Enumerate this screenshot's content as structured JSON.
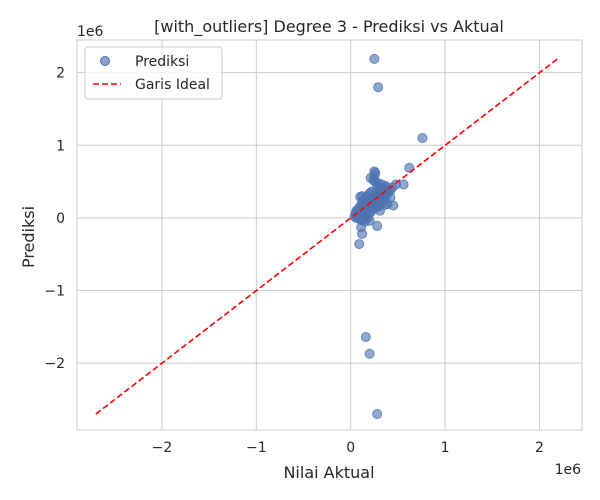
{
  "chart_data": {
    "type": "scatter",
    "title": "[with_outliers] Degree 3 - Prediksi vs Aktual",
    "xlabel": "Nilai Aktual",
    "ylabel": "Prediksi",
    "x_offset_text": "1e6",
    "y_offset_text": "1e6",
    "xlim": [
      -2.9,
      2.45
    ],
    "ylim": [
      -2.92,
      2.45
    ],
    "x_ticks": [
      -2,
      -1,
      0,
      1,
      2
    ],
    "y_ticks": [
      -2,
      -1,
      0,
      1,
      2
    ],
    "x_tick_labels": [
      "−2",
      "−1",
      "0",
      "1",
      "2"
    ],
    "y_tick_labels": [
      "−2",
      "−1",
      "0",
      "1",
      "2"
    ],
    "grid": true,
    "legend_position": "top-left",
    "colors": {
      "points": "#4c72b0",
      "ideal": "#ff0000",
      "grid": "#cccccc",
      "spine": "#cccccc"
    },
    "series": [
      {
        "name": "Prediksi",
        "type": "scatter",
        "points": [
          [
            0.25,
            2.19
          ],
          [
            0.29,
            1.8
          ],
          [
            0.76,
            1.1
          ],
          [
            0.62,
            0.69
          ],
          [
            0.56,
            0.46
          ],
          [
            0.48,
            0.46
          ],
          [
            0.44,
            0.42
          ],
          [
            0.42,
            0.38
          ],
          [
            0.38,
            0.42
          ],
          [
            0.36,
            0.36
          ],
          [
            0.33,
            0.46
          ],
          [
            0.31,
            0.4
          ],
          [
            0.28,
            0.44
          ],
          [
            0.26,
            0.62
          ],
          [
            0.25,
            0.64
          ],
          [
            0.25,
            0.58
          ],
          [
            0.24,
            0.52
          ],
          [
            0.21,
            0.55
          ],
          [
            0.26,
            0.5
          ],
          [
            0.22,
            0.36
          ],
          [
            0.2,
            0.34
          ],
          [
            0.18,
            0.3
          ],
          [
            0.16,
            0.28
          ],
          [
            0.12,
            0.3
          ],
          [
            0.1,
            0.29
          ],
          [
            0.3,
            0.3
          ],
          [
            0.32,
            0.26
          ],
          [
            0.34,
            0.22
          ],
          [
            0.36,
            0.18
          ],
          [
            0.39,
            0.19
          ],
          [
            0.45,
            0.17
          ],
          [
            0.3,
            0.16
          ],
          [
            0.31,
            0.1
          ],
          [
            0.28,
            0.18
          ],
          [
            0.26,
            0.22
          ],
          [
            0.24,
            0.26
          ],
          [
            0.22,
            0.24
          ],
          [
            0.2,
            0.2
          ],
          [
            0.18,
            0.16
          ],
          [
            0.16,
            0.14
          ],
          [
            0.14,
            0.18
          ],
          [
            0.12,
            0.22
          ],
          [
            0.1,
            0.16
          ],
          [
            0.08,
            0.12
          ],
          [
            0.06,
            0.1
          ],
          [
            0.05,
            0.06
          ],
          [
            0.04,
            0.02
          ],
          [
            0.06,
            0.0
          ],
          [
            0.08,
            0.04
          ],
          [
            0.1,
            0.08
          ],
          [
            0.12,
            0.06
          ],
          [
            0.14,
            0.04
          ],
          [
            0.16,
            0.02
          ],
          [
            0.18,
            0.0
          ],
          [
            0.2,
            0.06
          ],
          [
            0.13,
            -0.02
          ],
          [
            0.15,
            -0.05
          ],
          [
            0.11,
            -0.03
          ],
          [
            0.09,
            -0.01
          ],
          [
            0.07,
            0.03
          ],
          [
            0.2,
            -0.04
          ],
          [
            0.22,
            0.1
          ],
          [
            0.24,
            0.12
          ],
          [
            0.26,
            0.14
          ],
          [
            0.28,
            0.26
          ],
          [
            0.3,
            0.34
          ],
          [
            0.32,
            0.38
          ],
          [
            0.34,
            0.3
          ],
          [
            0.36,
            0.26
          ],
          [
            0.38,
            0.32
          ],
          [
            0.4,
            0.36
          ],
          [
            0.42,
            0.28
          ],
          [
            0.19,
            0.24
          ],
          [
            0.17,
            0.2
          ],
          [
            0.15,
            0.1
          ],
          [
            0.13,
            0.08
          ],
          [
            0.21,
            0.14
          ],
          [
            0.23,
            0.18
          ],
          [
            0.27,
            0.3
          ],
          [
            0.29,
            0.22
          ],
          [
            0.35,
            0.4
          ],
          [
            0.37,
            0.44
          ],
          [
            0.33,
            0.34
          ],
          [
            0.29,
            0.48
          ],
          [
            0.27,
            0.36
          ],
          [
            0.11,
            -0.13
          ],
          [
            0.12,
            -0.22
          ],
          [
            0.09,
            -0.36
          ],
          [
            0.28,
            -0.11
          ],
          [
            0.16,
            -1.64
          ],
          [
            0.2,
            -1.87
          ],
          [
            0.28,
            -2.7
          ]
        ]
      },
      {
        "name": "Garis Ideal",
        "type": "line",
        "style": "dashed",
        "points": [
          [
            -2.7,
            -2.7
          ],
          [
            2.19,
            2.19
          ]
        ]
      }
    ]
  }
}
